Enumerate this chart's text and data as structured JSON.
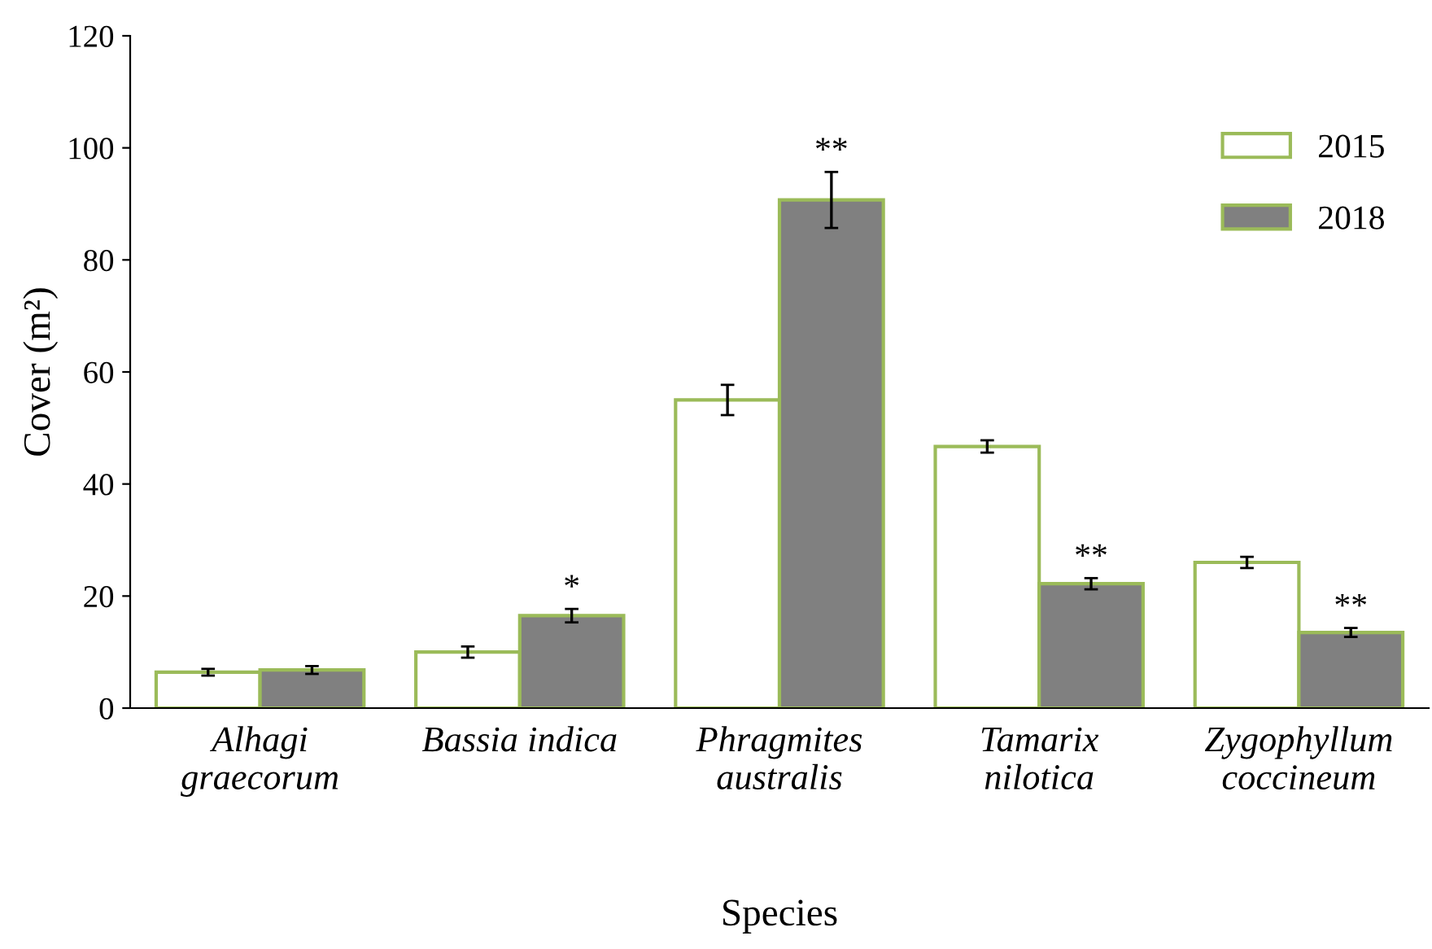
{
  "chart_data": {
    "type": "bar",
    "xlabel": "Species",
    "ylabel": "Cover (m²)",
    "categories": [
      "Alhagi\ngraecorum",
      "Bassia indica",
      "Phragmites\naustralis",
      "Tamarix\nnilotica",
      "Zygophyllum\ncoccineum"
    ],
    "series": [
      {
        "name": "2015",
        "color": "#ffffff",
        "values": [
          6.4,
          10,
          55,
          46.7,
          26
        ],
        "errors": [
          0.6,
          1,
          2.7,
          1.1,
          1
        ]
      },
      {
        "name": "2018",
        "color": "#808080",
        "values": [
          6.8,
          16.5,
          90.7,
          22.2,
          13.5
        ],
        "errors": [
          0.7,
          1.2,
          5,
          1,
          0.8
        ]
      }
    ],
    "ylim": [
      0,
      120
    ],
    "yticks": [
      0,
      20,
      40,
      60,
      80,
      100,
      120
    ],
    "grid": false,
    "legend": "top right",
    "annotations": [
      {
        "text": "*",
        "x": "Bassia indica",
        "y": 16.5
      },
      {
        "text": "**",
        "x": "Phragmites\naustralis",
        "y": 90.7
      },
      {
        "text": "**",
        "x": "Tamarix\nnilotica",
        "y": 22.2
      },
      {
        "text": "**",
        "x": "Zygophyllum\ncoccineum",
        "y": 13.5
      }
    ]
  }
}
